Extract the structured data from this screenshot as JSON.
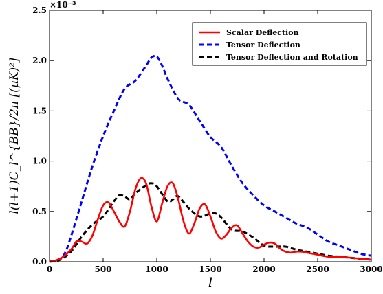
{
  "chart_data": {
    "type": "line",
    "title": "",
    "xlabel": "l",
    "ylabel": "l(l+1)C_l^{BB}/2π [(μK)²]",
    "xlim": [
      0,
      3000
    ],
    "ylim": [
      0,
      2.5
    ],
    "y_scale_note": "×10⁻³",
    "xticks": [
      "0",
      "500",
      "1000",
      "1500",
      "2000",
      "2500",
      "3000"
    ],
    "yticks": [
      "0.0",
      "0.5",
      "1.0",
      "1.5",
      "2.0",
      "2.5"
    ],
    "grid": false,
    "legend_position": "top-right",
    "series": [
      {
        "name": "Scalar Deflection",
        "color": "#ff0000",
        "style": "solid",
        "x": [
          0,
          100,
          200,
          250,
          300,
          350,
          400,
          450,
          500,
          550,
          600,
          650,
          700,
          750,
          800,
          850,
          900,
          950,
          1000,
          1050,
          1100,
          1150,
          1200,
          1250,
          1300,
          1350,
          1400,
          1450,
          1500,
          1550,
          1600,
          1650,
          1700,
          1750,
          1800,
          1850,
          1900,
          1950,
          2000,
          2050,
          2100,
          2150,
          2200,
          2250,
          2300,
          2350,
          2400,
          2500,
          2600,
          2700,
          2800,
          2900,
          3000
        ],
        "y": [
          0,
          0.03,
          0.12,
          0.2,
          0.2,
          0.18,
          0.26,
          0.42,
          0.56,
          0.59,
          0.5,
          0.4,
          0.35,
          0.5,
          0.72,
          0.83,
          0.78,
          0.55,
          0.4,
          0.58,
          0.75,
          0.78,
          0.62,
          0.4,
          0.28,
          0.38,
          0.53,
          0.57,
          0.45,
          0.3,
          0.23,
          0.27,
          0.34,
          0.36,
          0.28,
          0.2,
          0.15,
          0.14,
          0.17,
          0.19,
          0.18,
          0.13,
          0.1,
          0.09,
          0.1,
          0.1,
          0.09,
          0.07,
          0.05,
          0.05,
          0.04,
          0.03,
          0.02
        ]
      },
      {
        "name": "Tensor Deflection",
        "color": "#0000ff",
        "style": "dashed",
        "x": [
          0,
          100,
          150,
          200,
          300,
          400,
          500,
          600,
          700,
          800,
          900,
          950,
          1000,
          1050,
          1100,
          1200,
          1300,
          1400,
          1500,
          1600,
          1700,
          1800,
          1900,
          2000,
          2100,
          2200,
          2300,
          2400,
          2500,
          2600,
          2700,
          2800,
          2900,
          3000
        ],
        "y": [
          0,
          0.03,
          0.1,
          0.25,
          0.6,
          0.95,
          1.25,
          1.5,
          1.72,
          1.8,
          1.95,
          2.03,
          2.04,
          1.95,
          1.82,
          1.62,
          1.56,
          1.4,
          1.24,
          1.14,
          0.95,
          0.78,
          0.66,
          0.56,
          0.5,
          0.44,
          0.38,
          0.34,
          0.27,
          0.2,
          0.16,
          0.12,
          0.08,
          0.06
        ]
      },
      {
        "name": "Tensor Deflection and Rotation",
        "color": "#000000",
        "style": "dashed",
        "x": [
          0,
          100,
          200,
          300,
          400,
          500,
          600,
          650,
          700,
          750,
          800,
          900,
          950,
          1000,
          1100,
          1150,
          1200,
          1300,
          1400,
          1500,
          1550,
          1600,
          1700,
          1800,
          1900,
          2000,
          2100,
          2200,
          2300,
          2400,
          2500,
          2600,
          2700,
          2800,
          2900,
          3000
        ],
        "y": [
          0,
          0.02,
          0.1,
          0.25,
          0.37,
          0.45,
          0.6,
          0.66,
          0.65,
          0.62,
          0.68,
          0.76,
          0.78,
          0.75,
          0.6,
          0.62,
          0.65,
          0.53,
          0.45,
          0.48,
          0.48,
          0.44,
          0.32,
          0.3,
          0.24,
          0.16,
          0.15,
          0.15,
          0.12,
          0.1,
          0.08,
          0.06,
          0.05,
          0.04,
          0.03,
          0.02
        ]
      }
    ]
  }
}
